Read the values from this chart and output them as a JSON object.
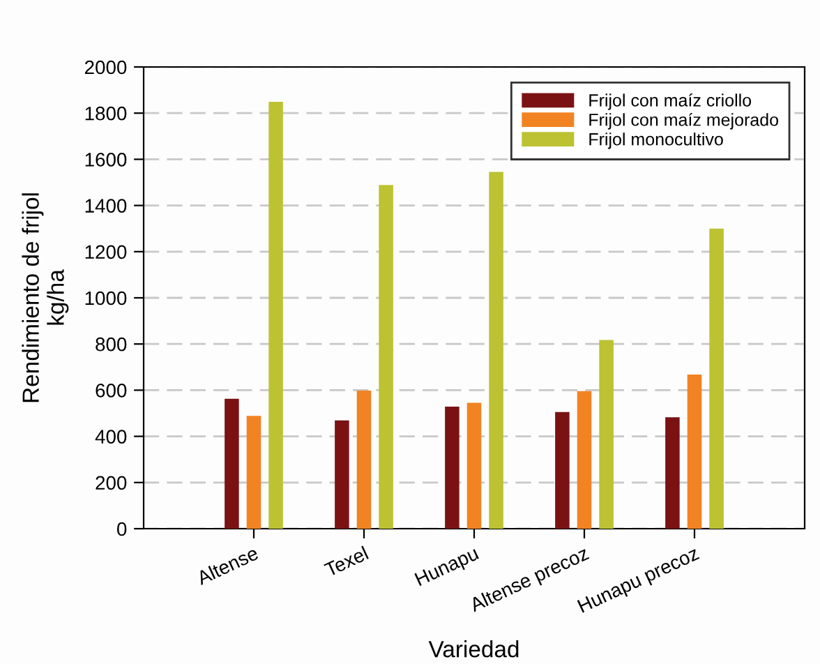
{
  "chart_data": {
    "type": "bar",
    "xlabel": "Variedad",
    "ylabel": "Rendimiento de frijol\nkg/ha",
    "categories": [
      "Altense",
      "Texel",
      "Hunapu",
      "Altense precoz",
      "Hunapu precoz"
    ],
    "series": [
      {
        "name": "Frijol con maíz criollo",
        "color": "#7a1214",
        "values": [
          563,
          469,
          529,
          505,
          483
        ]
      },
      {
        "name": "Frijol con maíz mejorado",
        "color": "#f28322",
        "values": [
          489,
          598,
          545,
          596,
          668
        ]
      },
      {
        "name": "Frijol monocultivo",
        "color": "#bcc231",
        "values": [
          1849,
          1489,
          1545,
          817,
          1300
        ]
      }
    ],
    "ylim": [
      0,
      2000
    ],
    "yticks": [
      0,
      200,
      400,
      600,
      800,
      1000,
      1200,
      1400,
      1600,
      1800,
      2000
    ],
    "grid": "y",
    "legend": "top right"
  }
}
